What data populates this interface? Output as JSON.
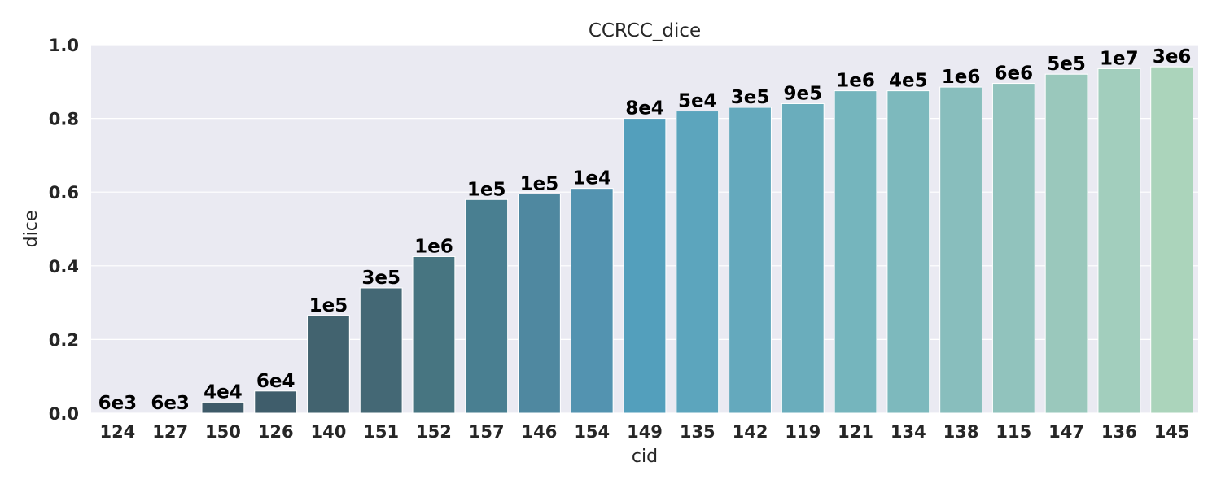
{
  "chart_data": {
    "type": "bar",
    "title": "CCRCC_dice",
    "xlabel": "cid",
    "ylabel": "dice",
    "ylim": [
      0,
      1.0
    ],
    "yticks": [
      "0.0",
      "0.2",
      "0.4",
      "0.6",
      "0.8",
      "1.0"
    ],
    "grid": true,
    "categories": [
      "124",
      "127",
      "150",
      "126",
      "140",
      "151",
      "152",
      "157",
      "146",
      "154",
      "149",
      "135",
      "142",
      "119",
      "121",
      "134",
      "138",
      "115",
      "147",
      "136",
      "145"
    ],
    "values": [
      0.0,
      0.0,
      0.03,
      0.06,
      0.265,
      0.34,
      0.425,
      0.58,
      0.595,
      0.61,
      0.8,
      0.82,
      0.83,
      0.84,
      0.875,
      0.875,
      0.885,
      0.895,
      0.92,
      0.935,
      0.94
    ],
    "bar_labels": [
      "6e3",
      "6e3",
      "4e4",
      "6e4",
      "1e5",
      "3e5",
      "1e6",
      "1e5",
      "1e5",
      "1e4",
      "8e4",
      "5e4",
      "3e5",
      "9e5",
      "1e6",
      "4e5",
      "1e6",
      "6e6",
      "5e5",
      "1e7",
      "3e6"
    ],
    "colors": [
      "#3a4c56",
      "#3b5461",
      "#3e5a68",
      "#3f5d6b",
      "#42636f",
      "#446875",
      "#477581",
      "#497f91",
      "#4f88a0",
      "#5393b0",
      "#539fbc",
      "#5ca5bd",
      "#64a9bd",
      "#6aadbc",
      "#75b5bd",
      "#7db9bd",
      "#88bebd",
      "#91c3bd",
      "#9ac8bc",
      "#a2cebd",
      "#abd4bb"
    ],
    "background": "#eaeaf2"
  }
}
